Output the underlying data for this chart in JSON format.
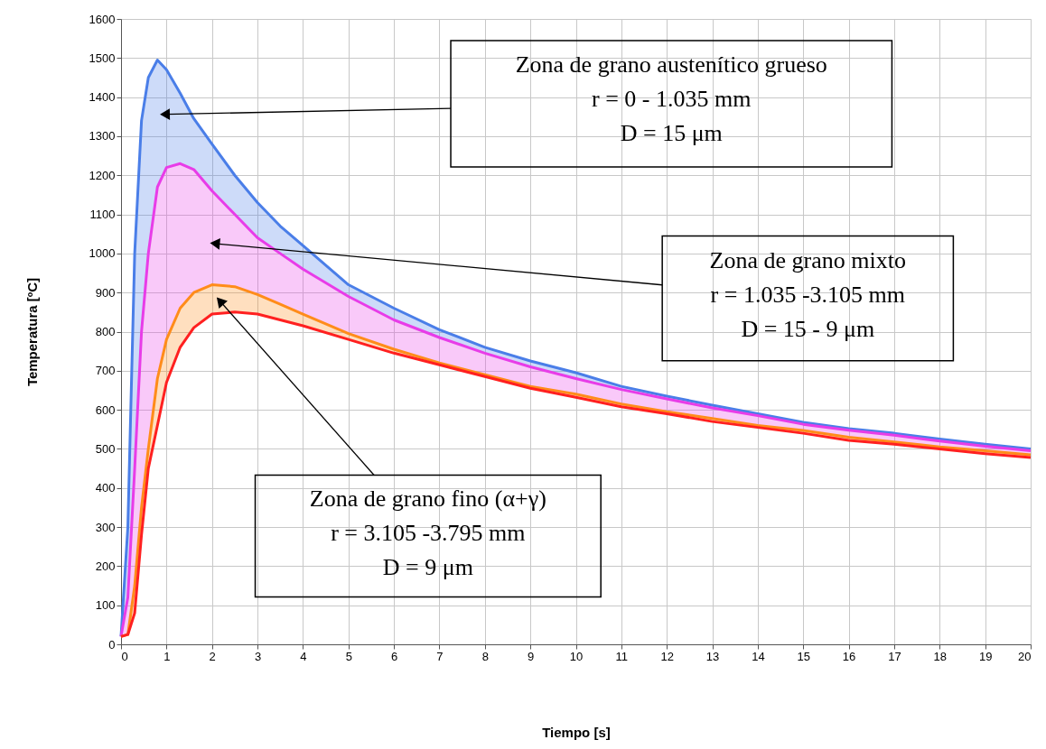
{
  "chart_data": {
    "type": "line",
    "xlabel": "Tiempo  [s]",
    "ylabel": "Temperatura [ºC]",
    "x": [
      0,
      0.15,
      0.3,
      0.45,
      0.6,
      0.8,
      1.0,
      1.3,
      1.6,
      2,
      2.5,
      3,
      3.5,
      4,
      5,
      6,
      7,
      8,
      9,
      10,
      11,
      12,
      13,
      14,
      15,
      16,
      17,
      18,
      19,
      20
    ],
    "series": [
      {
        "color": "#4a7ee8",
        "values": [
          20,
          300,
          1000,
          1340,
          1450,
          1495,
          1470,
          1410,
          1345,
          1280,
          1200,
          1130,
          1070,
          1020,
          920,
          860,
          805,
          760,
          725,
          695,
          660,
          635,
          612,
          590,
          568,
          552,
          540,
          525,
          512,
          500
        ]
      },
      {
        "color": "#e83ce8",
        "values": [
          20,
          120,
          450,
          800,
          1000,
          1170,
          1220,
          1230,
          1215,
          1160,
          1100,
          1040,
          1000,
          960,
          890,
          830,
          785,
          745,
          710,
          680,
          652,
          628,
          605,
          585,
          563,
          548,
          535,
          520,
          507,
          495
        ]
      },
      {
        "color": "#ff8c1a",
        "values": [
          20,
          25,
          150,
          350,
          500,
          680,
          780,
          860,
          900,
          920,
          915,
          895,
          870,
          845,
          795,
          755,
          720,
          690,
          660,
          640,
          615,
          595,
          578,
          560,
          547,
          530,
          518,
          505,
          495,
          485
        ]
      },
      {
        "color": "#ff2020",
        "values": [
          20,
          25,
          80,
          280,
          450,
          560,
          670,
          760,
          810,
          845,
          850,
          845,
          830,
          815,
          780,
          745,
          715,
          685,
          655,
          632,
          608,
          590,
          570,
          555,
          540,
          522,
          512,
          500,
          488,
          478
        ]
      }
    ],
    "xlim": [
      0,
      20
    ],
    "xticks": [
      0,
      1,
      2,
      3,
      4,
      5,
      6,
      7,
      8,
      9,
      10,
      11,
      12,
      13,
      14,
      15,
      16,
      17,
      18,
      19,
      20
    ],
    "ylim": [
      0,
      1600
    ],
    "yticks": [
      0,
      100,
      200,
      300,
      400,
      500,
      600,
      700,
      800,
      900,
      1000,
      1100,
      1200,
      1300,
      1400,
      1500,
      1600
    ],
    "grid": true,
    "marker": "none",
    "line_style": "solid",
    "annotations": [
      "Zona de grano austenítico grueso\nr  = 0 - 1.035 mm\nD = 15 μm",
      "Zona de grano mixto\nr  = 1.035 -3.105 mm\nD = 15 - 9 μm",
      "Zona de grano fino (α+γ)\nr = 3.105 -3.795 mm\nD = 9 μm"
    ]
  }
}
